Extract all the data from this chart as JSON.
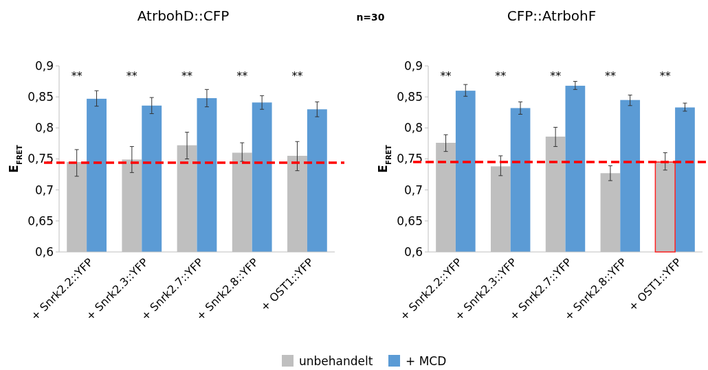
{
  "chart_data": [
    {
      "type": "bar",
      "title": "AtrbohD::CFP",
      "ylabel": "E$_{FRET}$",
      "categories": [
        "+ Snrk2.2::YFP",
        "+ Snrk2.3::YFP",
        "+ Snrk2.7::YFP",
        "+ Snrk2.8::YFP",
        "+ OST1::YFP"
      ],
      "series": [
        {
          "name": "unbehandelt",
          "color": "#bfbfbf",
          "values": [
            0.745,
            0.749,
            0.772,
            0.76,
            0.755
          ],
          "errors": [
            [
              0.722,
              0.765
            ],
            [
              0.728,
              0.77
            ],
            [
              0.75,
              0.793
            ],
            [
              0.746,
              0.776
            ],
            [
              0.731,
              0.778
            ]
          ]
        },
        {
          "name": "+ MCD",
          "color": "#5b9bd5",
          "values": [
            0.847,
            0.836,
            0.848,
            0.841,
            0.83
          ],
          "errors": [
            [
              0.835,
              0.86
            ],
            [
              0.823,
              0.849
            ],
            [
              0.834,
              0.862
            ],
            [
              0.83,
              0.852
            ],
            [
              0.818,
              0.842
            ]
          ]
        }
      ],
      "ylim": [
        0.6,
        0.9
      ],
      "yticks": [
        {
          "value": 0.6,
          "label": "0,6"
        },
        {
          "value": 0.65,
          "label": "0,65"
        },
        {
          "value": 0.7,
          "label": "0,7"
        },
        {
          "value": 0.75,
          "label": "0,75"
        },
        {
          "value": 0.8,
          "label": "0,8"
        },
        {
          "value": 0.85,
          "label": "0,85"
        },
        {
          "value": 0.9,
          "label": "0,9"
        }
      ],
      "ref_lines": [
        {
          "axis": "y",
          "value": 0.744,
          "color": "#ff0000",
          "line_style": "dashed"
        }
      ],
      "annotations": [
        "**",
        "**",
        "**",
        "**",
        "**",
        "n=30"
      ],
      "legend": "bottom",
      "grid": false
    },
    {
      "type": "bar",
      "title": "CFP::AtrbohF",
      "ylabel": "E$_{FRET}$",
      "categories": [
        "+ Snrk2.2::YFP",
        "+ Snrk2.3::YFP",
        "+ Snrk2.7::YFP",
        "+ Snrk2.8::YFP",
        "+ OST1::YFP"
      ],
      "series": [
        {
          "color": "#bfbfbf",
          "values": [
            0.776,
            0.738,
            0.786,
            0.727,
            0.745
          ],
          "errors": [
            [
              0.762,
              0.789
            ],
            [
              0.723,
              0.755
            ],
            [
              0.77,
              0.801
            ],
            [
              0.715,
              0.739
            ],
            [
              0.732,
              0.76
            ]
          ]
        },
        {
          "color": "#5b9bd5",
          "values": [
            0.86,
            0.832,
            0.868,
            0.845,
            0.833
          ],
          "errors": [
            [
              0.851,
              0.87
            ],
            [
              0.822,
              0.842
            ],
            [
              0.862,
              0.875
            ],
            [
              0.836,
              0.853
            ],
            [
              0.827,
              0.84
            ]
          ]
        }
      ],
      "ylim": [
        0.6,
        0.9
      ],
      "yticks": [
        {
          "value": 0.6,
          "label": "0,6"
        },
        {
          "value": 0.65,
          "label": "0,65"
        },
        {
          "value": 0.7,
          "label": "0,7"
        },
        {
          "value": 0.75,
          "label": "0,75"
        },
        {
          "value": 0.8,
          "label": "0,8"
        },
        {
          "value": 0.85,
          "label": "0,85"
        },
        {
          "value": 0.9,
          "label": "0,9"
        }
      ],
      "ref_lines": [
        {
          "axis": "y",
          "value": 0.745,
          "color": "#ff0000",
          "line_style": "dashed"
        }
      ],
      "annotations": [
        "**",
        "**",
        "**",
        "**",
        "**"
      ],
      "grid": false
    }
  ]
}
